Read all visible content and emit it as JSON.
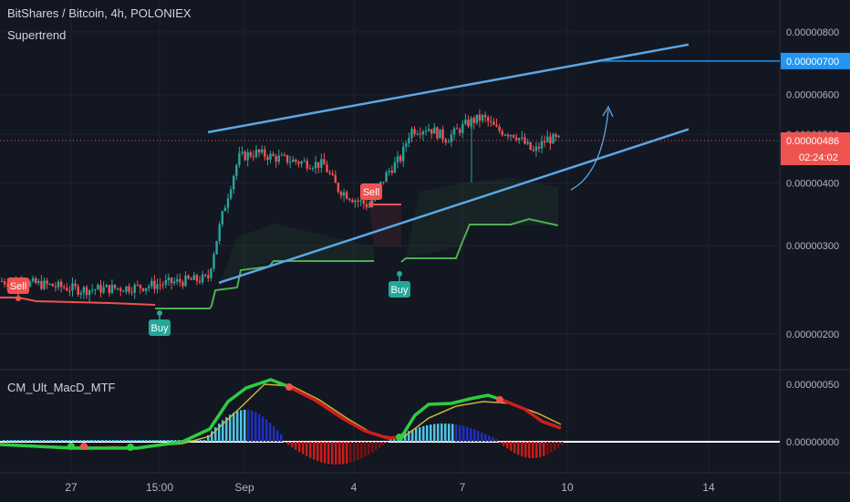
{
  "header": {
    "symbol_title": "BitShares / Bitcoin, 4h, POLONIEX",
    "indicator_name": "Supertrend",
    "macd_name": "CM_Ult_MacD_MTF"
  },
  "price_axis": {
    "ticks": [
      "0.00000800",
      "0.00000600",
      "0.00000500",
      "0.00000400",
      "0.00000300",
      "0.00000200"
    ],
    "target_label": "0.00000700",
    "last_price_label": "0.00000486",
    "countdown_label": "02:24:02"
  },
  "macd_axis": {
    "ticks": [
      "0.00000050",
      "0.00000000"
    ]
  },
  "time_axis": {
    "ticks": [
      "27",
      "15:00",
      "Sep",
      "4",
      "7",
      "10",
      "14"
    ]
  },
  "signals": [
    {
      "label": "Sell",
      "color": "#ef5350"
    },
    {
      "label": "Buy",
      "color": "#26a69a"
    },
    {
      "label": "Sell",
      "color": "#ef5350"
    },
    {
      "label": "Buy",
      "color": "#26a69a"
    }
  ],
  "colors": {
    "background": "#131722",
    "grid": "#1f2330",
    "up_candle": "#26a69a",
    "down_candle": "#ef5350",
    "supertrend_up": "#4caf50",
    "supertrend_down": "#ef5350",
    "channel": "#5aa7e6",
    "target_badge": "#2196f3",
    "price_badge": "#ef5350",
    "macd_line_up": "#2ecc40",
    "macd_line_down": "#d01d1d",
    "signal_line": "#c8b53a"
  },
  "chart_data": {
    "type": "candlestick",
    "title": "BitShares / Bitcoin, 4h, POLONIEX",
    "xlabel": "",
    "ylabel": "",
    "ylim": [
      1.6e-06,
      8.5e-06
    ],
    "y_scale": "log",
    "last_price": 4.86e-06,
    "target_price": 7e-06,
    "series": [
      {
        "name": "Supertrend",
        "values": [
          2.6e-06,
          2.5e-06,
          2.9e-06,
          3.7e-06,
          4.1e-06
        ]
      }
    ],
    "channel": {
      "upper": {
        "from_price": 5.05e-06,
        "to_price": 7.55e-06
      },
      "lower": {
        "from_price": 2.53e-06,
        "to_price": 5.12e-06
      }
    },
    "macd": {
      "ylim": [
        -2e-07,
        6e-07
      ],
      "zero_label": "0.00000000",
      "upper_label": "0.00000050"
    }
  }
}
